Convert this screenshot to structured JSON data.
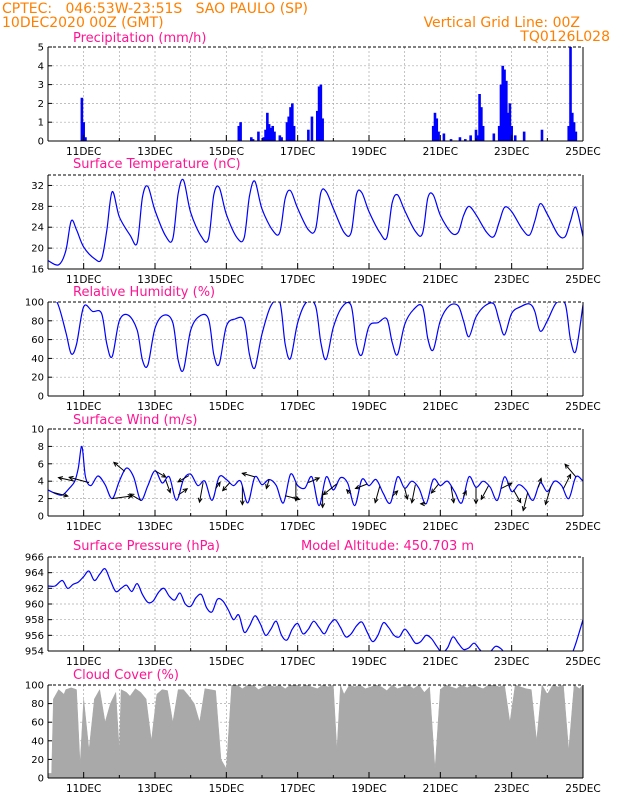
{
  "header": {
    "line1_left": "CPTEC:   046:53W-23:51S   SAO PAULO (SP)",
    "line2_left": "10DEC2020 00Z (GMT)",
    "line1_right": "Vertical Grid Line: 00Z",
    "line2_right": "TQ0126L028"
  },
  "colors": {
    "header": "#ff7f00",
    "title": "#ff1493",
    "series": "#0000ff",
    "cloud": "#a9a9a9",
    "grid": "#aaaaaa",
    "arrow": "#000000"
  },
  "x_tick_labels": [
    "11DEC",
    "13DEC",
    "15DEC",
    "17DEC",
    "19DEC",
    "21DEC",
    "23DEC",
    "25DEC"
  ],
  "chart_data": [
    {
      "type": "bar",
      "title": "Precipitation (mm/h)",
      "ylim": [
        0,
        5
      ],
      "yticks": [
        0,
        1,
        2,
        3,
        4,
        5
      ],
      "time_unit": "day of December 2020 (00Z)",
      "x": [
        10.95,
        11.0,
        11.05,
        15.35,
        15.4,
        15.7,
        15.75,
        15.9,
        16.05,
        16.1,
        16.15,
        16.2,
        16.25,
        16.3,
        16.35,
        16.5,
        16.55,
        16.7,
        16.75,
        16.8,
        16.85,
        16.9,
        17.3,
        17.4,
        17.55,
        17.6,
        17.65,
        17.7,
        20.8,
        20.85,
        20.9,
        20.95,
        21.1,
        21.3,
        21.55,
        21.7,
        21.85,
        22.0,
        22.05,
        22.1,
        22.15,
        22.2,
        22.5,
        22.65,
        22.7,
        22.75,
        22.8,
        22.85,
        22.9,
        22.95,
        23.0,
        23.1,
        23.35,
        23.85,
        24.6,
        24.65,
        24.7,
        24.75,
        24.8
      ],
      "values": [
        2.3,
        1.0,
        0.2,
        0.8,
        1.0,
        0.2,
        0.1,
        0.5,
        0.2,
        0.6,
        1.5,
        0.9,
        0.7,
        0.8,
        0.5,
        0.3,
        0.2,
        1.0,
        1.3,
        1.8,
        2.0,
        0.8,
        0.6,
        1.3,
        1.6,
        2.9,
        3.0,
        1.2,
        0.8,
        1.5,
        1.2,
        0.5,
        0.4,
        0.1,
        0.2,
        0.1,
        0.3,
        0.6,
        0.3,
        2.5,
        1.8,
        0.8,
        0.4,
        0.8,
        3.0,
        4.0,
        3.8,
        3.2,
        1.5,
        2.0,
        0.8,
        0.3,
        0.5,
        0.6,
        0.8,
        5.0,
        1.5,
        1.0,
        0.5
      ]
    },
    {
      "type": "line",
      "title": "Surface Temperature (nC)",
      "ylim": [
        16,
        34
      ],
      "yticks": [
        16,
        20,
        24,
        28,
        32
      ],
      "x": [
        10.0,
        10.3,
        10.5,
        10.65,
        10.8,
        11.0,
        11.3,
        11.5,
        11.65,
        11.8,
        12.0,
        12.3,
        12.5,
        12.65,
        12.8,
        13.0,
        13.3,
        13.5,
        13.65,
        13.8,
        14.0,
        14.3,
        14.5,
        14.65,
        14.8,
        15.0,
        15.3,
        15.5,
        15.65,
        15.8,
        16.0,
        16.3,
        16.5,
        16.65,
        16.8,
        17.0,
        17.3,
        17.5,
        17.65,
        17.8,
        18.0,
        18.3,
        18.5,
        18.65,
        18.8,
        19.0,
        19.3,
        19.5,
        19.65,
        19.8,
        20.0,
        20.3,
        20.5,
        20.65,
        20.8,
        21.0,
        21.3,
        21.5,
        21.65,
        21.8,
        22.0,
        22.3,
        22.5,
        22.65,
        22.8,
        23.0,
        23.3,
        23.5,
        23.65,
        23.8,
        24.0,
        24.3,
        24.5,
        24.65,
        24.8,
        25.0
      ],
      "values": [
        17.6,
        16.8,
        19.5,
        25.2,
        23.5,
        20.2,
        18.0,
        17.9,
        23.5,
        30.8,
        26.0,
        22.5,
        21.0,
        29.8,
        31.8,
        27.2,
        22.3,
        21.8,
        30.5,
        33.0,
        26.8,
        22.2,
        21.8,
        30.2,
        31.6,
        26.5,
        22.0,
        22.0,
        30.0,
        32.8,
        27.5,
        23.4,
        23.0,
        29.5,
        31.0,
        27.6,
        23.5,
        23.6,
        30.6,
        30.8,
        27.6,
        23.0,
        23.0,
        30.3,
        30.6,
        27.0,
        23.0,
        22.0,
        28.7,
        30.2,
        27.2,
        23.2,
        22.8,
        29.6,
        30.2,
        26.3,
        23.0,
        23.0,
        26.2,
        28.0,
        26.4,
        23.0,
        22.2,
        25.0,
        27.8,
        27.0,
        23.6,
        22.5,
        25.2,
        28.5,
        26.5,
        22.6,
        22.2,
        25.2,
        27.8,
        22.2
      ]
    },
    {
      "type": "line",
      "title": "Relative Humidity (%)",
      "ylim": [
        0,
        100
      ],
      "yticks": [
        0,
        20,
        40,
        60,
        80,
        100
      ],
      "x": [
        10.0,
        10.25,
        10.5,
        10.65,
        10.8,
        11.0,
        11.25,
        11.5,
        11.65,
        11.8,
        12.0,
        12.25,
        12.5,
        12.65,
        12.8,
        13.0,
        13.25,
        13.5,
        13.65,
        13.8,
        14.0,
        14.25,
        14.5,
        14.65,
        14.8,
        15.0,
        15.25,
        15.5,
        15.65,
        15.8,
        16.0,
        16.25,
        16.5,
        16.65,
        16.8,
        17.0,
        17.25,
        17.5,
        17.65,
        17.8,
        18.0,
        18.25,
        18.5,
        18.65,
        18.8,
        19.0,
        19.25,
        19.5,
        19.65,
        19.8,
        20.0,
        20.25,
        20.5,
        20.65,
        20.8,
        21.0,
        21.25,
        21.5,
        21.65,
        21.8,
        22.0,
        22.25,
        22.5,
        22.65,
        22.8,
        23.0,
        23.25,
        23.5,
        23.65,
        23.8,
        24.0,
        24.25,
        24.5,
        24.65,
        24.8,
        25.0
      ],
      "values": [
        100,
        100,
        68,
        45,
        55,
        95,
        90,
        88,
        55,
        42,
        80,
        86,
        70,
        38,
        33,
        72,
        86,
        78,
        38,
        28,
        70,
        85,
        82,
        44,
        34,
        74,
        82,
        80,
        44,
        30,
        66,
        96,
        100,
        55,
        40,
        78,
        100,
        96,
        57,
        39,
        73,
        95,
        96,
        55,
        44,
        74,
        78,
        82,
        57,
        44,
        76,
        92,
        95,
        61,
        49,
        80,
        96,
        96,
        80,
        63,
        84,
        96,
        98,
        80,
        65,
        88,
        95,
        98,
        90,
        69,
        80,
        99,
        98,
        60,
        48,
        97
      ]
    },
    {
      "type": "line",
      "title": "Surface Wind (m/s)",
      "ylim": [
        0,
        10
      ],
      "yticks": [
        0,
        2,
        4,
        6,
        8,
        10
      ],
      "x": [
        10.0,
        10.2,
        10.4,
        10.6,
        10.75,
        10.85,
        10.95,
        11.05,
        11.2,
        11.4,
        11.6,
        11.8,
        12.0,
        12.2,
        12.4,
        12.6,
        12.8,
        13.0,
        13.2,
        13.4,
        13.6,
        13.8,
        14.0,
        14.2,
        14.4,
        14.6,
        14.8,
        15.0,
        15.2,
        15.4,
        15.6,
        15.8,
        16.0,
        16.2,
        16.4,
        16.6,
        16.8,
        17.0,
        17.2,
        17.4,
        17.6,
        17.8,
        18.0,
        18.2,
        18.4,
        18.6,
        18.8,
        19.0,
        19.2,
        19.4,
        19.6,
        19.8,
        20.0,
        20.2,
        20.4,
        20.6,
        20.8,
        21.0,
        21.2,
        21.4,
        21.6,
        21.8,
        22.0,
        22.2,
        22.4,
        22.6,
        22.8,
        23.0,
        23.2,
        23.4,
        23.6,
        23.8,
        24.0,
        24.2,
        24.4,
        24.6,
        24.8,
        25.0
      ],
      "values": [
        3.0,
        2.6,
        2.4,
        3.2,
        4.0,
        5.5,
        8.0,
        4.5,
        3.5,
        4.6,
        3.6,
        2.0,
        4.0,
        5.5,
        4.5,
        1.8,
        3.5,
        5.2,
        3.8,
        4.5,
        1.8,
        4.2,
        4.8,
        3.5,
        4.0,
        1.8,
        4.5,
        4.2,
        3.5,
        4.0,
        1.5,
        4.5,
        3.6,
        4.2,
        3.5,
        1.5,
        4.8,
        3.5,
        3.2,
        4.5,
        1.2,
        4.5,
        3.0,
        4.4,
        3.8,
        1.2,
        4.2,
        3.5,
        4.2,
        2.6,
        1.5,
        4.5,
        3.2,
        4.0,
        3.2,
        1.4,
        4.2,
        3.5,
        4.0,
        2.8,
        1.5,
        4.5,
        3.3,
        4.0,
        3.3,
        1.8,
        4.5,
        2.8,
        3.6,
        3.0,
        1.8,
        3.8,
        2.8,
        4.0,
        3.5,
        2.0,
        4.5,
        4.0
      ],
      "vector_directions": {
        "x": [
          10.15,
          10.75,
          11.15,
          11.8,
          12.15,
          12.6,
          13.0,
          13.3,
          13.65,
          13.95,
          14.35,
          14.7,
          15.1,
          15.45,
          15.8,
          16.2,
          16.65,
          16.95,
          17.3,
          17.7,
          18.1,
          18.5,
          18.95,
          19.3,
          19.65,
          20.0,
          20.3,
          20.6,
          20.95,
          21.3,
          21.65,
          22.0,
          22.35,
          22.7,
          23.05,
          23.45,
          23.75,
          24.1,
          24.45,
          24.8
        ],
        "u": [
          1.6,
          -1.8,
          -2.2,
          2.2,
          -1.2,
          -1.2,
          1.2,
          0.5,
          1.0,
          -1.2,
          -0.4,
          0.5,
          -0.8,
          0.0,
          -1.4,
          -0.3,
          1.6,
          0.0,
          1.2,
          0.0,
          -1.5,
          -0.5,
          -1.3,
          -0.5,
          0.6,
          0.3,
          -0.4,
          -0.6,
          -0.8,
          0.3,
          0.3,
          0.0,
          -0.8,
          1.2,
          0.8,
          -0.5,
          0.3,
          -0.6,
          0.8,
          -1.2
        ],
        "v": [
          -0.4,
          0.4,
          0.6,
          0.3,
          1.0,
          0.7,
          -0.7,
          -1.4,
          0.7,
          -0.7,
          -2.2,
          0.7,
          -0.9,
          -2.0,
          0.4,
          -1.0,
          -0.4,
          -2.0,
          0.5,
          -1.8,
          -1.2,
          0.5,
          -0.5,
          -1.8,
          0.6,
          -1.2,
          -2.0,
          0.0,
          -1.0,
          -1.8,
          0.6,
          -1.8,
          -1.5,
          0.6,
          -1.4,
          -2.0,
          1.0,
          -2.0,
          1.6,
          1.4
        ]
      }
    },
    {
      "type": "line",
      "title": "Surface Pressure (hPa)",
      "annotation": "Model Altitude: 450.703 m",
      "ylim": [
        954,
        966
      ],
      "yticks": [
        954,
        956,
        958,
        960,
        962,
        964,
        966
      ],
      "x": [
        10.0,
        10.2,
        10.4,
        10.55,
        10.7,
        10.85,
        11.0,
        11.15,
        11.3,
        11.45,
        11.6,
        11.75,
        11.9,
        12.05,
        12.2,
        12.35,
        12.5,
        12.65,
        12.8,
        12.95,
        13.1,
        13.25,
        13.4,
        13.55,
        13.7,
        13.85,
        14.0,
        14.15,
        14.3,
        14.45,
        14.6,
        14.75,
        14.9,
        15.05,
        15.2,
        15.35,
        15.5,
        15.65,
        15.8,
        15.95,
        16.1,
        16.25,
        16.4,
        16.55,
        16.7,
        16.85,
        17.0,
        17.15,
        17.3,
        17.45,
        17.6,
        17.75,
        17.9,
        18.05,
        18.2,
        18.35,
        18.5,
        18.65,
        18.8,
        18.95,
        19.1,
        19.25,
        19.4,
        19.55,
        19.7,
        19.85,
        20.0,
        20.15,
        20.3,
        20.45,
        20.6,
        20.75,
        20.9,
        21.05,
        21.2,
        21.35,
        21.5,
        21.65,
        21.8,
        21.95,
        22.1,
        22.25,
        22.4,
        22.55,
        22.7,
        22.85,
        23.0,
        23.15,
        23.3,
        23.45,
        23.6,
        23.75,
        23.9,
        24.05,
        24.2,
        24.35,
        24.5,
        24.65,
        24.8,
        25.0
      ],
      "values": [
        962.3,
        962.3,
        963.0,
        962.0,
        962.5,
        962.8,
        963.5,
        964.2,
        963.0,
        963.8,
        964.5,
        963.0,
        961.6,
        962.0,
        962.4,
        961.6,
        962.6,
        961.2,
        960.2,
        960.4,
        961.5,
        962.0,
        961.0,
        960.5,
        961.4,
        960.0,
        959.7,
        960.8,
        961.2,
        959.5,
        959.0,
        960.6,
        960.4,
        959.3,
        958.0,
        958.6,
        956.4,
        957.2,
        958.5,
        957.5,
        956.0,
        956.8,
        957.8,
        956.0,
        955.4,
        956.8,
        957.5,
        956.2,
        956.8,
        957.8,
        957.0,
        956.2,
        957.4,
        958.0,
        957.0,
        955.8,
        956.2,
        957.2,
        957.7,
        956.4,
        955.2,
        956.0,
        957.6,
        957.0,
        956.0,
        955.8,
        956.8,
        956.0,
        955.0,
        955.2,
        956.0,
        955.6,
        954.6,
        953.8,
        954.4,
        955.8,
        955.0,
        954.2,
        954.4,
        955.0,
        954.2,
        953.6,
        953.9,
        954.6,
        954.3,
        953.5,
        953.3,
        953.6,
        953.4,
        953.1,
        953.2,
        953.3,
        953.0,
        953.2,
        953.1,
        952.9,
        953.1,
        953.3,
        955.0,
        958.0
      ]
    },
    {
      "type": "area",
      "title": "Cloud Cover (%)",
      "ylim": [
        0,
        100
      ],
      "yticks": [
        0,
        20,
        40,
        60,
        80,
        100
      ],
      "x": [
        10.0,
        10.1,
        10.15,
        10.3,
        10.45,
        10.5,
        10.65,
        10.8,
        10.9,
        11.0,
        11.15,
        11.3,
        11.45,
        11.6,
        11.75,
        11.9,
        12.0,
        12.05,
        12.2,
        12.3,
        12.45,
        12.6,
        12.75,
        12.9,
        13.05,
        13.2,
        13.35,
        13.5,
        13.65,
        13.8,
        13.95,
        14.1,
        14.25,
        14.4,
        14.55,
        14.7,
        14.85,
        15.0,
        15.15,
        15.3,
        15.45,
        15.6,
        15.75,
        15.9,
        16.05,
        16.2,
        16.35,
        16.5,
        16.65,
        16.8,
        16.95,
        17.1,
        17.25,
        17.4,
        17.55,
        17.7,
        17.85,
        18.0,
        18.1,
        18.2,
        18.3,
        18.45,
        18.6,
        18.75,
        18.9,
        19.05,
        19.2,
        19.35,
        19.5,
        19.65,
        19.8,
        19.95,
        20.1,
        20.25,
        20.4,
        20.55,
        20.7,
        20.85,
        21.0,
        21.15,
        21.3,
        21.45,
        21.6,
        21.75,
        21.9,
        22.05,
        22.2,
        22.35,
        22.5,
        22.65,
        22.8,
        22.95,
        23.1,
        23.25,
        23.4,
        23.55,
        23.7,
        23.85,
        24.0,
        24.15,
        24.3,
        24.45,
        24.6,
        24.75,
        24.9,
        25.0
      ],
      "values": [
        5,
        5,
        85,
        95,
        90,
        95,
        97,
        95,
        15,
        85,
        30,
        85,
        95,
        60,
        80,
        92,
        30,
        95,
        92,
        88,
        96,
        92,
        85,
        40,
        90,
        95,
        94,
        60,
        95,
        95,
        88,
        80,
        60,
        96,
        95,
        94,
        20,
        10,
        100,
        100,
        96,
        100,
        100,
        95,
        98,
        100,
        98,
        100,
        96,
        100,
        100,
        98,
        100,
        98,
        96,
        100,
        98,
        100,
        30,
        100,
        90,
        100,
        98,
        100,
        96,
        98,
        100,
        98,
        94,
        100,
        96,
        98,
        100,
        96,
        100,
        92,
        98,
        10,
        95,
        100,
        98,
        96,
        100,
        97,
        100,
        98,
        96,
        100,
        100,
        98,
        100,
        60,
        100,
        98,
        96,
        95,
        40,
        100,
        90,
        100,
        98,
        100,
        30,
        100,
        96,
        100
      ]
    }
  ]
}
